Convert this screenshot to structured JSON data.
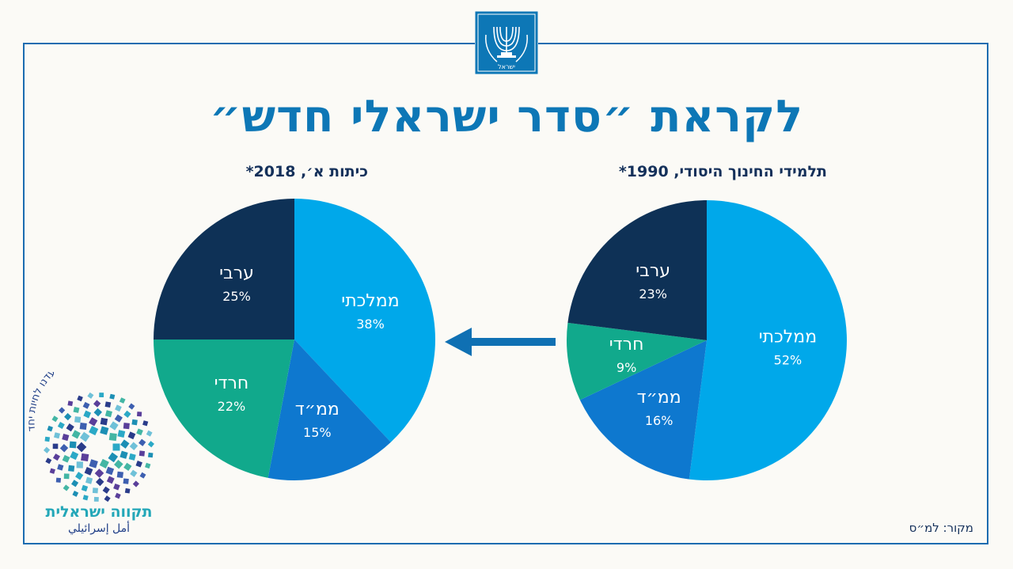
{
  "title": "לקראת ״סדר ישראלי חדש״",
  "source": "מקור: למ״ס",
  "logo": {
    "name": "תקווה ישראלית",
    "arabic": "أمل إسرائيلي",
    "tagline": "נועדנו לחיות יחד"
  },
  "emblem_text": "ישראל",
  "colors": {
    "background": "#fbfaf6",
    "frame": "#1c6cb0",
    "title": "#0d77b6",
    "mamlachti": "#00a8ea",
    "mamad": "#0e78cf",
    "haredi": "#11a98c",
    "aravi": "#0e3156",
    "arrow": "#0f70b3"
  },
  "chart_data": [
    {
      "type": "pie",
      "title": "תלמידי החינוך היסודי, 1990*",
      "slices": [
        {
          "label": "ממלכתי",
          "value": 52,
          "display": "52%",
          "color": "#00a8ea"
        },
        {
          "label": "ממ״ד",
          "value": 16,
          "display": "16%",
          "color": "#0e78cf"
        },
        {
          "label": "חרדי",
          "value": 9,
          "display": "9%",
          "color": "#11a98c"
        },
        {
          "label": "ערבי",
          "value": 23,
          "display": "23%",
          "color": "#0e3156"
        }
      ]
    },
    {
      "type": "pie",
      "title": "כיתות א׳, 2018*",
      "slices": [
        {
          "label": "ממלכתי",
          "value": 38,
          "display": "38%",
          "color": "#00a8ea"
        },
        {
          "label": "ממ״ד",
          "value": 15,
          "display": "15%",
          "color": "#0e78cf"
        },
        {
          "label": "חרדי",
          "value": 22,
          "display": "22%",
          "color": "#11a98c"
        },
        {
          "label": "ערבי",
          "value": 25,
          "display": "25%",
          "color": "#0e3156"
        }
      ]
    }
  ]
}
